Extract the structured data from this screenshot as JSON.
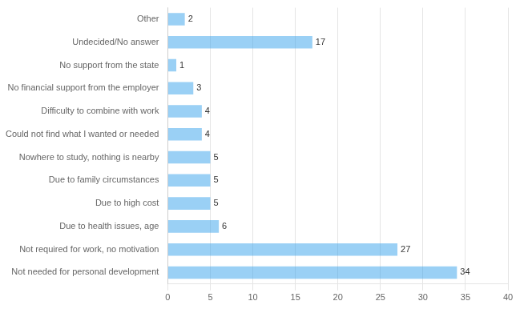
{
  "chart_data": {
    "type": "bar",
    "orientation": "horizontal",
    "categories": [
      "Not needed for personal development",
      "Not required for work, no motivation",
      "Due to health issues, age",
      "Due to high cost",
      "Due to family circumstances",
      "Nowhere to study, nothing is nearby",
      "Could not find what I wanted or needed",
      "Difficulty to combine with work",
      "No financial support from the employer",
      "No support from the state",
      "Undecided/No answer",
      "Other"
    ],
    "values": [
      34,
      27,
      6,
      5,
      5,
      5,
      4,
      4,
      3,
      1,
      17,
      2
    ],
    "xlim": [
      0,
      40
    ],
    "xticks": [
      0,
      5,
      10,
      15,
      20,
      25,
      30,
      35,
      40
    ],
    "grid": true,
    "data_labels": true,
    "legend": false
  }
}
